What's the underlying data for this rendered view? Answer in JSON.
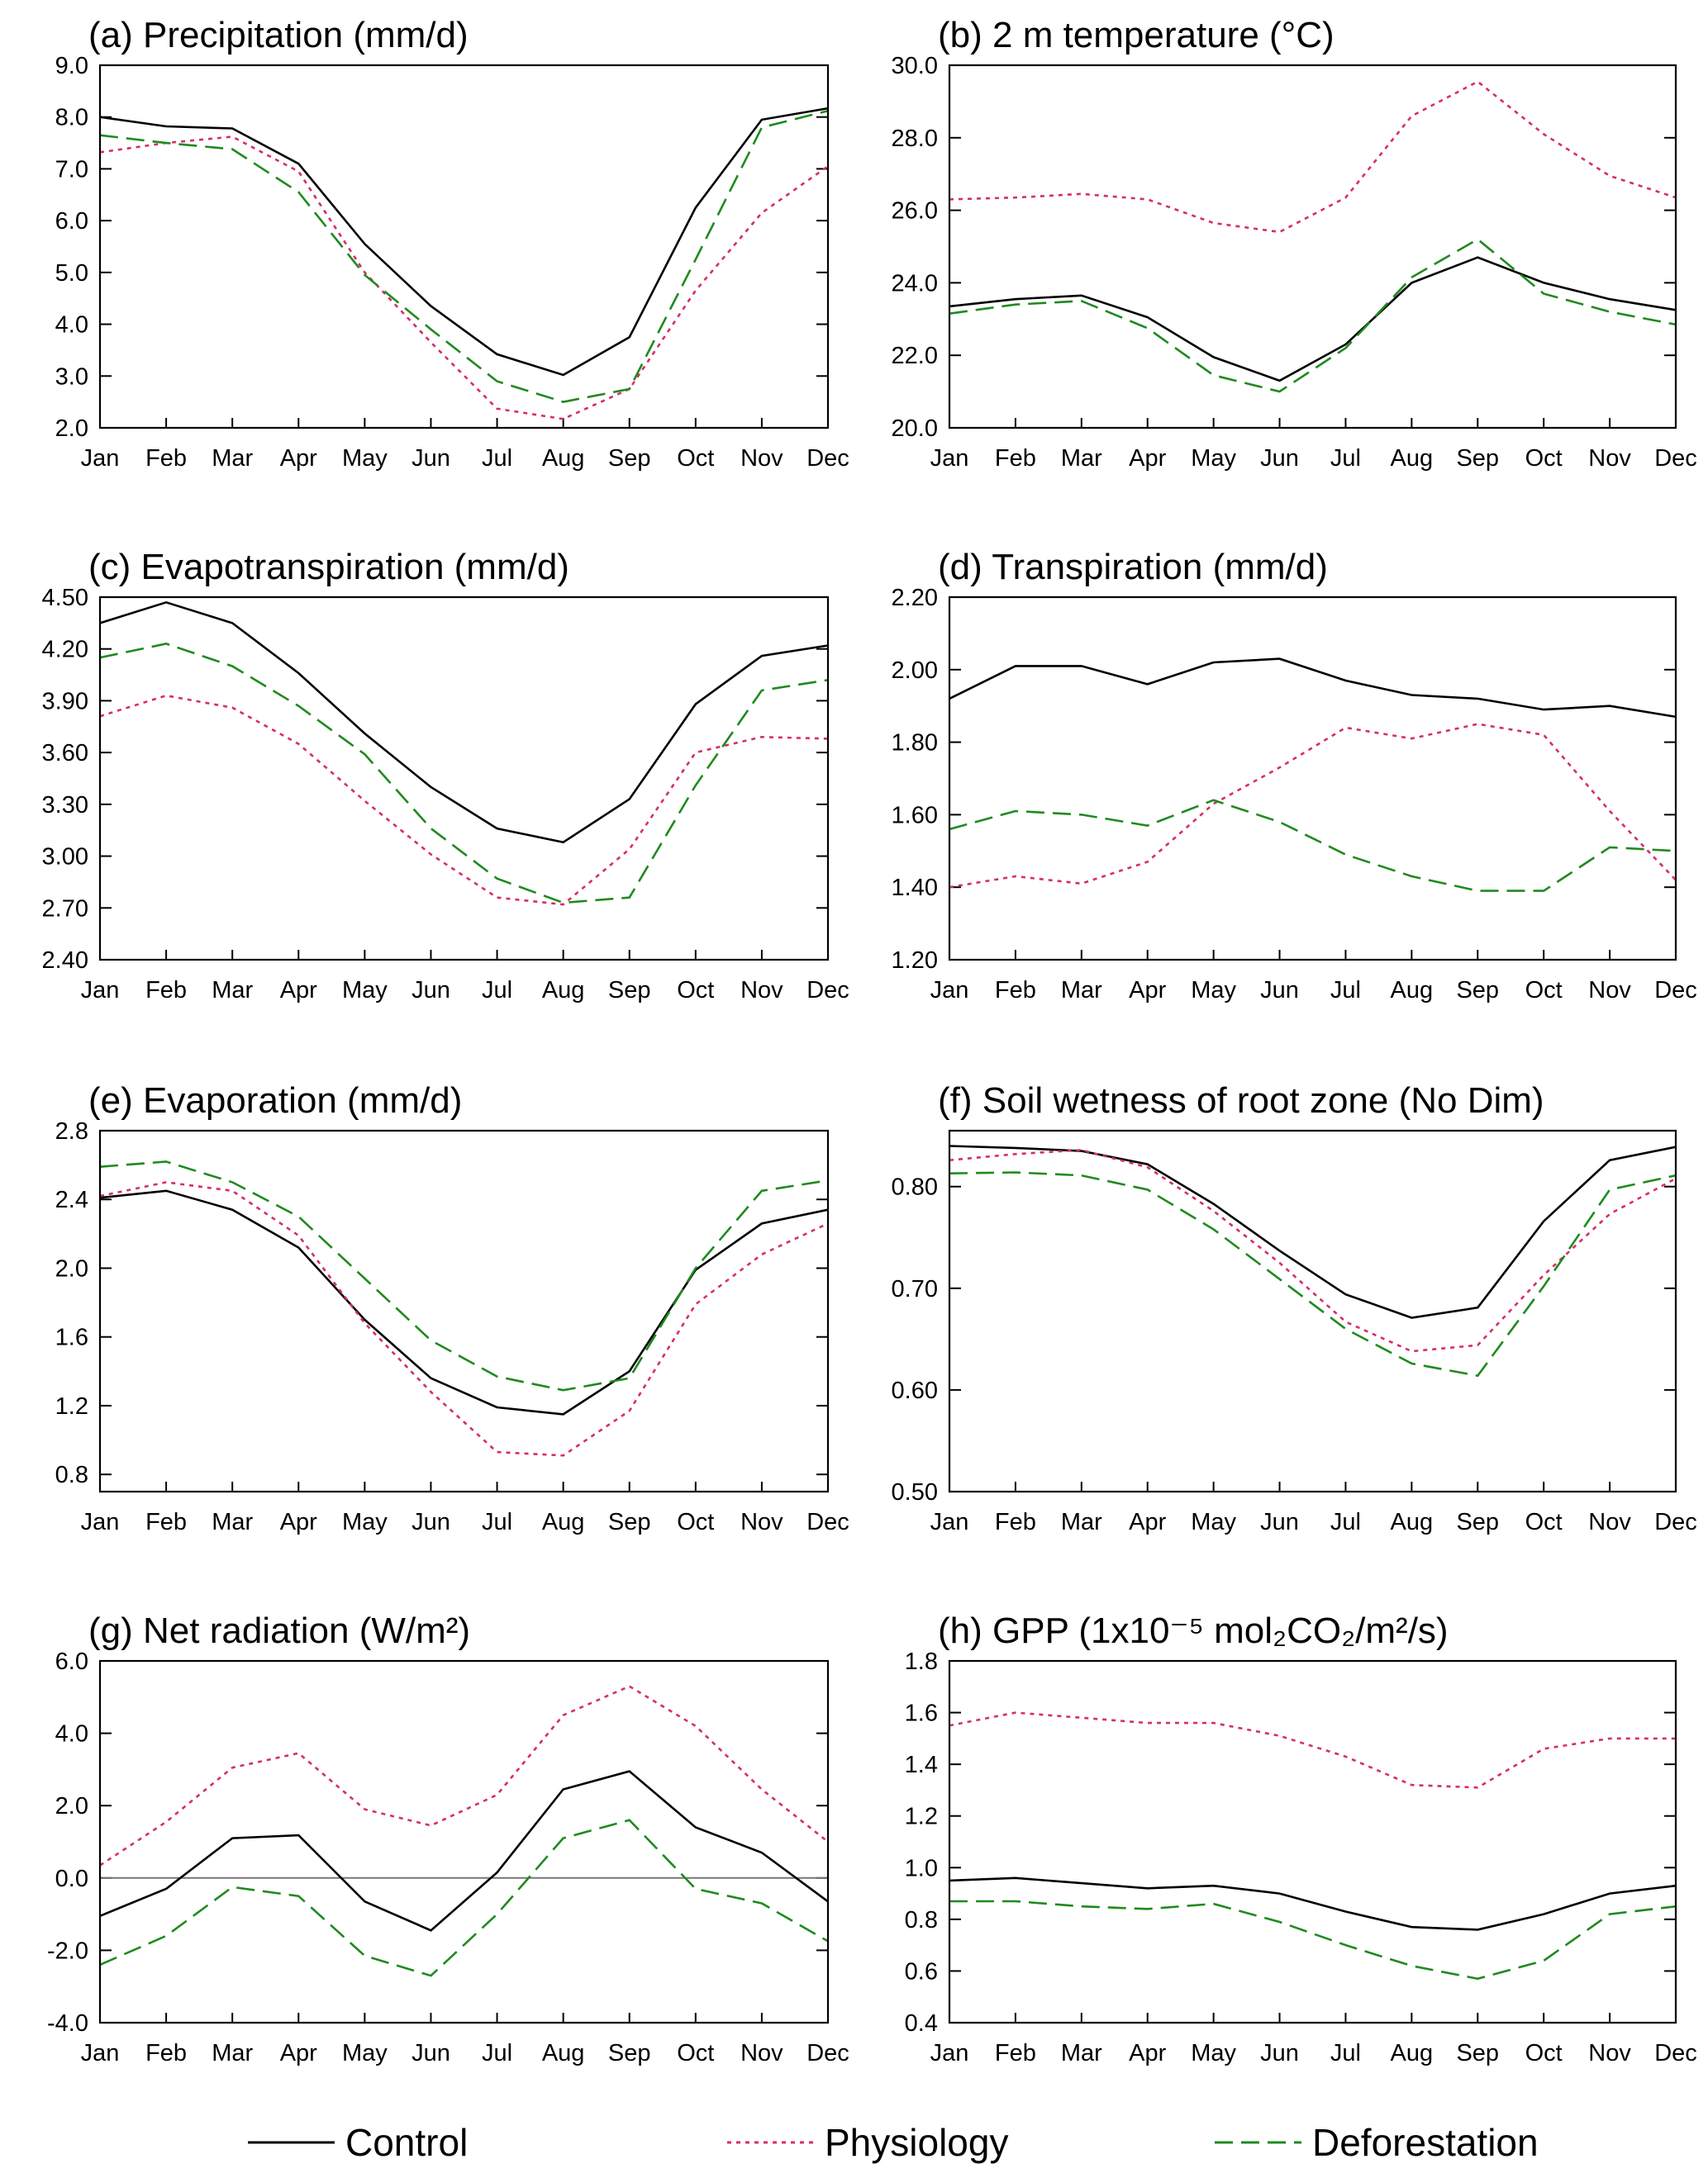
{
  "chart_data": [
    {
      "type": "line",
      "title": "(a) Precipitation (mm/d)",
      "legend": "bottom",
      "categories": [
        "Jan",
        "Feb",
        "Mar",
        "Apr",
        "May",
        "Jun",
        "Jul",
        "Aug",
        "Sep",
        "Oct",
        "Nov",
        "Dec"
      ],
      "ylim": [
        2,
        9
      ],
      "yticks": [
        {
          "value": 2,
          "label": "2.0"
        },
        {
          "value": 3,
          "label": "3.0"
        },
        {
          "value": 4,
          "label": "4.0"
        },
        {
          "value": 5,
          "label": "5.0"
        },
        {
          "value": 6,
          "label": "6.0"
        },
        {
          "value": 7,
          "label": "7.0"
        },
        {
          "value": 8,
          "label": "8.0"
        },
        {
          "value": 9,
          "label": "9.0"
        }
      ],
      "series": [
        {
          "name": "Control",
          "color": "#000000",
          "style": "solid",
          "values": [
            8.0,
            7.82,
            7.78,
            7.1,
            5.55,
            4.35,
            3.42,
            3.02,
            3.75,
            6.25,
            7.95,
            8.17
          ]
        },
        {
          "name": "Physiology",
          "color": "#d62d6a",
          "style": "dotted",
          "values": [
            7.32,
            7.5,
            7.62,
            6.95,
            5.0,
            3.65,
            2.37,
            2.17,
            2.75,
            4.65,
            6.15,
            7.05
          ]
        },
        {
          "name": "Deforestation",
          "color": "#1f8a1f",
          "style": "dashed",
          "values": [
            7.65,
            7.5,
            7.38,
            6.55,
            4.95,
            3.9,
            2.9,
            2.5,
            2.75,
            5.25,
            7.8,
            8.12
          ]
        }
      ]
    },
    {
      "type": "line",
      "title": "(b) 2 m temperature (°C)",
      "categories": [
        "Jan",
        "Feb",
        "Mar",
        "Apr",
        "May",
        "Jun",
        "Jul",
        "Aug",
        "Sep",
        "Oct",
        "Nov",
        "Dec"
      ],
      "ylim": [
        20,
        30
      ],
      "yticks": [
        {
          "value": 20,
          "label": "20.0"
        },
        {
          "value": 22,
          "label": "22.0"
        },
        {
          "value": 24,
          "label": "24.0"
        },
        {
          "value": 26,
          "label": "26.0"
        },
        {
          "value": 28,
          "label": "28.0"
        },
        {
          "value": 30,
          "label": "30.0"
        }
      ],
      "series": [
        {
          "name": "Control",
          "color": "#000000",
          "style": "solid",
          "values": [
            23.35,
            23.55,
            23.65,
            23.05,
            21.95,
            21.3,
            22.3,
            24.0,
            24.7,
            24.0,
            23.55,
            23.25
          ]
        },
        {
          "name": "Physiology",
          "color": "#d62d6a",
          "style": "dotted",
          "values": [
            26.3,
            26.35,
            26.45,
            26.3,
            25.65,
            25.4,
            26.35,
            28.6,
            29.55,
            28.1,
            26.95,
            26.35
          ]
        },
        {
          "name": "Deforestation",
          "color": "#1f8a1f",
          "style": "dashed",
          "values": [
            23.15,
            23.4,
            23.5,
            22.75,
            21.45,
            21.0,
            22.2,
            24.15,
            25.2,
            23.7,
            23.2,
            22.85
          ]
        }
      ]
    },
    {
      "type": "line",
      "title": "(c) Evapotranspiration (mm/d)",
      "categories": [
        "Jan",
        "Feb",
        "Mar",
        "Apr",
        "May",
        "Jun",
        "Jul",
        "Aug",
        "Sep",
        "Oct",
        "Nov",
        "Dec"
      ],
      "ylim": [
        2.4,
        4.5
      ],
      "yticks": [
        {
          "value": 2.4,
          "label": "2.40"
        },
        {
          "value": 2.7,
          "label": "2.70"
        },
        {
          "value": 3.0,
          "label": "3.00"
        },
        {
          "value": 3.3,
          "label": "3.30"
        },
        {
          "value": 3.6,
          "label": "3.60"
        },
        {
          "value": 3.9,
          "label": "3.90"
        },
        {
          "value": 4.2,
          "label": "4.20"
        },
        {
          "value": 4.5,
          "label": "4.50"
        }
      ],
      "series": [
        {
          "name": "Control",
          "color": "#000000",
          "style": "solid",
          "values": [
            4.35,
            4.47,
            4.35,
            4.06,
            3.71,
            3.4,
            3.16,
            3.08,
            3.33,
            3.88,
            4.16,
            4.22
          ]
        },
        {
          "name": "Physiology",
          "color": "#d62d6a",
          "style": "dotted",
          "values": [
            3.81,
            3.93,
            3.86,
            3.65,
            3.32,
            3.01,
            2.76,
            2.72,
            3.04,
            3.6,
            3.69,
            3.68
          ]
        },
        {
          "name": "Deforestation",
          "color": "#1f8a1f",
          "style": "dashed",
          "values": [
            4.15,
            4.23,
            4.1,
            3.87,
            3.59,
            3.16,
            2.87,
            2.73,
            2.76,
            3.41,
            3.96,
            4.02
          ]
        }
      ]
    },
    {
      "type": "line",
      "title": "(d) Transpiration (mm/d)",
      "categories": [
        "Jan",
        "Feb",
        "Mar",
        "Apr",
        "May",
        "Jun",
        "Jul",
        "Aug",
        "Sep",
        "Oct",
        "Nov",
        "Dec"
      ],
      "ylim": [
        1.2,
        2.2
      ],
      "yticks": [
        {
          "value": 1.2,
          "label": "1.20"
        },
        {
          "value": 1.4,
          "label": "1.40"
        },
        {
          "value": 1.6,
          "label": "1.60"
        },
        {
          "value": 1.8,
          "label": "1.80"
        },
        {
          "value": 2.0,
          "label": "2.00"
        },
        {
          "value": 2.2,
          "label": "2.20"
        }
      ],
      "series": [
        {
          "name": "Control",
          "color": "#000000",
          "style": "solid",
          "values": [
            1.92,
            2.01,
            2.01,
            1.96,
            2.02,
            2.03,
            1.97,
            1.93,
            1.92,
            1.89,
            1.9,
            1.87
          ]
        },
        {
          "name": "Physiology",
          "color": "#d62d6a",
          "style": "dotted",
          "values": [
            1.4,
            1.43,
            1.41,
            1.47,
            1.63,
            1.73,
            1.84,
            1.81,
            1.85,
            1.82,
            1.61,
            1.42
          ]
        },
        {
          "name": "Deforestation",
          "color": "#1f8a1f",
          "style": "dashed",
          "values": [
            1.56,
            1.61,
            1.6,
            1.57,
            1.64,
            1.58,
            1.49,
            1.43,
            1.39,
            1.39,
            1.51,
            1.5
          ]
        }
      ]
    },
    {
      "type": "line",
      "title": "(e) Evaporation (mm/d)",
      "categories": [
        "Jan",
        "Feb",
        "Mar",
        "Apr",
        "May",
        "Jun",
        "Jul",
        "Aug",
        "Sep",
        "Oct",
        "Nov",
        "Dec"
      ],
      "ylim": [
        0.7,
        2.8
      ],
      "yticks": [
        {
          "value": 0.8,
          "label": "0.8"
        },
        {
          "value": 1.2,
          "label": "1.2"
        },
        {
          "value": 1.6,
          "label": "1.6"
        },
        {
          "value": 2.0,
          "label": "2.0"
        },
        {
          "value": 2.4,
          "label": "2.4"
        },
        {
          "value": 2.8,
          "label": "2.8"
        }
      ],
      "series": [
        {
          "name": "Control",
          "color": "#000000",
          "style": "solid",
          "values": [
            2.41,
            2.45,
            2.34,
            2.12,
            1.7,
            1.36,
            1.19,
            1.15,
            1.4,
            1.99,
            2.26,
            2.34
          ]
        },
        {
          "name": "Physiology",
          "color": "#d62d6a",
          "style": "dotted",
          "values": [
            2.42,
            2.5,
            2.45,
            2.19,
            1.68,
            1.28,
            0.93,
            0.91,
            1.17,
            1.79,
            2.08,
            2.26
          ]
        },
        {
          "name": "Deforestation",
          "color": "#1f8a1f",
          "style": "dashed",
          "values": [
            2.59,
            2.62,
            2.5,
            2.3,
            1.94,
            1.58,
            1.37,
            1.29,
            1.36,
            2.0,
            2.45,
            2.51
          ]
        }
      ]
    },
    {
      "type": "line",
      "title": "(f) Soil wetness of root zone (No Dim)",
      "categories": [
        "Jan",
        "Feb",
        "Mar",
        "Apr",
        "May",
        "Jun",
        "Jul",
        "Aug",
        "Sep",
        "Oct",
        "Nov",
        "Dec"
      ],
      "ylim": [
        0.5,
        0.855
      ],
      "yticks": [
        {
          "value": 0.5,
          "label": "0.50"
        },
        {
          "value": 0.6,
          "label": "0.60"
        },
        {
          "value": 0.7,
          "label": "0.70"
        },
        {
          "value": 0.8,
          "label": "0.80"
        }
      ],
      "series": [
        {
          "name": "Control",
          "color": "#000000",
          "style": "solid",
          "values": [
            0.84,
            0.838,
            0.835,
            0.822,
            0.783,
            0.737,
            0.694,
            0.671,
            0.681,
            0.766,
            0.826,
            0.839
          ]
        },
        {
          "name": "Physiology",
          "color": "#d62d6a",
          "style": "dotted",
          "values": [
            0.826,
            0.832,
            0.836,
            0.819,
            0.776,
            0.725,
            0.667,
            0.638,
            0.644,
            0.713,
            0.773,
            0.808
          ]
        },
        {
          "name": "Deforestation",
          "color": "#1f8a1f",
          "style": "dashed",
          "values": [
            0.813,
            0.814,
            0.811,
            0.797,
            0.758,
            0.709,
            0.66,
            0.626,
            0.614,
            0.702,
            0.797,
            0.811
          ]
        }
      ]
    },
    {
      "type": "line",
      "title": "(g) Net radiation (W/m²)",
      "hline": 0,
      "categories": [
        "Jan",
        "Feb",
        "Mar",
        "Apr",
        "May",
        "Jun",
        "Jul",
        "Aug",
        "Sep",
        "Oct",
        "Nov",
        "Dec"
      ],
      "ylim": [
        -4,
        6
      ],
      "yticks": [
        {
          "value": -4,
          "label": "-4.0"
        },
        {
          "value": -2,
          "label": "-2.0"
        },
        {
          "value": 0,
          "label": "0.0"
        },
        {
          "value": 2,
          "label": "2.0"
        },
        {
          "value": 4,
          "label": "4.0"
        },
        {
          "value": 6,
          "label": "6.0"
        }
      ],
      "series": [
        {
          "name": "Control",
          "color": "#000000",
          "style": "solid",
          "values": [
            -1.05,
            -0.3,
            1.1,
            1.18,
            -0.65,
            -1.45,
            0.15,
            2.45,
            2.95,
            1.4,
            0.7,
            -0.65
          ]
        },
        {
          "name": "Physiology",
          "color": "#d62d6a",
          "style": "dotted",
          "values": [
            0.35,
            1.55,
            3.05,
            3.45,
            1.9,
            1.45,
            2.3,
            4.5,
            5.3,
            4.2,
            2.45,
            1.0
          ]
        },
        {
          "name": "Deforestation",
          "color": "#1f8a1f",
          "style": "dashed",
          "values": [
            -2.4,
            -1.6,
            -0.25,
            -0.5,
            -2.15,
            -2.7,
            -1.0,
            1.1,
            1.6,
            -0.3,
            -0.7,
            -1.75
          ]
        }
      ]
    },
    {
      "type": "line",
      "title": "(h) GPP (1x10⁻⁵ mol₂CO₂/m²/s)",
      "categories": [
        "Jan",
        "Feb",
        "Mar",
        "Apr",
        "May",
        "Jun",
        "Jul",
        "Aug",
        "Sep",
        "Oct",
        "Nov",
        "Dec"
      ],
      "ylim": [
        0.4,
        1.8
      ],
      "yticks": [
        {
          "value": 0.4,
          "label": "0.4"
        },
        {
          "value": 0.6,
          "label": "0.6"
        },
        {
          "value": 0.8,
          "label": "0.8"
        },
        {
          "value": 1.0,
          "label": "1.0"
        },
        {
          "value": 1.2,
          "label": "1.2"
        },
        {
          "value": 1.4,
          "label": "1.4"
        },
        {
          "value": 1.6,
          "label": "1.6"
        },
        {
          "value": 1.8,
          "label": "1.8"
        }
      ],
      "series": [
        {
          "name": "Control",
          "color": "#000000",
          "style": "solid",
          "values": [
            0.95,
            0.96,
            0.94,
            0.92,
            0.93,
            0.9,
            0.83,
            0.77,
            0.76,
            0.82,
            0.9,
            0.93
          ]
        },
        {
          "name": "Physiology",
          "color": "#d62d6a",
          "style": "dotted",
          "values": [
            1.55,
            1.6,
            1.58,
            1.56,
            1.56,
            1.51,
            1.43,
            1.32,
            1.31,
            1.46,
            1.5,
            1.5
          ]
        },
        {
          "name": "Deforestation",
          "color": "#1f8a1f",
          "style": "dashed",
          "values": [
            0.87,
            0.87,
            0.85,
            0.84,
            0.86,
            0.79,
            0.7,
            0.62,
            0.57,
            0.64,
            0.82,
            0.85
          ]
        }
      ]
    }
  ]
}
